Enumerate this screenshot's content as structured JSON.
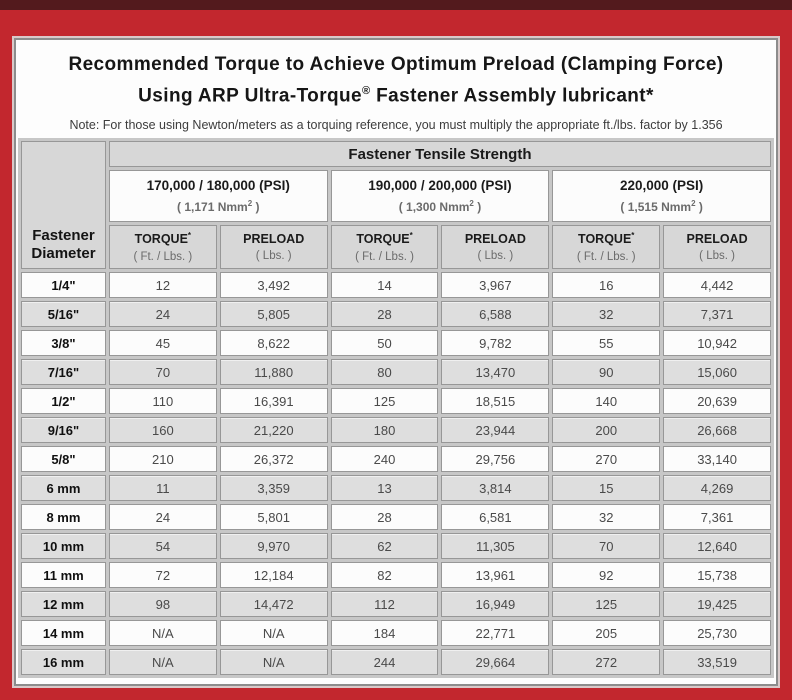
{
  "header": {
    "title_line1": "Recommended Torque to Achieve Optimum Preload (Clamping Force)",
    "title_line2_pre": "Using ARP Ultra-Torque",
    "title_line2_sup": "®",
    "title_line2_post": " Fastener Assembly lubricant*",
    "note": "Note: For those using Newton/meters as a torquing reference, you must multiply the appropriate ft./lbs. factor by 1.356"
  },
  "table": {
    "corner_line1": "Fastener",
    "corner_line2": "Diameter",
    "tensile_strength_header": "Fastener Tensile Strength",
    "groups": [
      {
        "psi": "170,000 / 180,000 (PSI)",
        "nmm_open": "( 1,171 Nmm",
        "nmm_sup": "2",
        "nmm_close": " )"
      },
      {
        "psi": "190,000 / 200,000 (PSI)",
        "nmm_open": "( 1,300 Nmm",
        "nmm_sup": "2",
        "nmm_close": " )"
      },
      {
        "psi": "220,000 (PSI)",
        "nmm_open": "( 1,515 Nmm",
        "nmm_sup": "2",
        "nmm_close": " )"
      }
    ],
    "torque_label": "TORQUE",
    "torque_sup": "*",
    "torque_unit": "( Ft. / Lbs. )",
    "preload_label": "PRELOAD",
    "preload_unit": "( Lbs. )"
  },
  "colors": {
    "frame_red": "#c2272e",
    "top_strip": "#531a1d",
    "header_gray": "#d7d7d7",
    "row_gray": "#dedede",
    "row_white": "#fcfcfc"
  },
  "chart_data": {
    "type": "table",
    "title": "Recommended Torque to Achieve Optimum Preload (Clamping Force) Using ARP Ultra-Torque® Fastener Assembly lubricant*",
    "note": "Note: For those using Newton/meters as a torquing reference, you must multiply the appropriate ft./lbs. factor by 1.356",
    "column_groups": [
      "170,000 / 180,000 (PSI) ( 1,171 Nmm2 )",
      "190,000 / 200,000 (PSI) ( 1,300 Nmm2 )",
      "220,000 (PSI) ( 1,515 Nmm2 )"
    ],
    "columns": [
      "Fastener Diameter",
      "TORQUE* ( Ft. / Lbs. )",
      "PRELOAD ( Lbs. )",
      "TORQUE* ( Ft. / Lbs. )",
      "PRELOAD ( Lbs. )",
      "TORQUE* ( Ft. / Lbs. )",
      "PRELOAD ( Lbs. )"
    ],
    "rows": [
      [
        "1/4\"",
        "12",
        "3,492",
        "14",
        "3,967",
        "16",
        "4,442"
      ],
      [
        "5/16\"",
        "24",
        "5,805",
        "28",
        "6,588",
        "32",
        "7,371"
      ],
      [
        "3/8\"",
        "45",
        "8,622",
        "50",
        "9,782",
        "55",
        "10,942"
      ],
      [
        "7/16\"",
        "70",
        "11,880",
        "80",
        "13,470",
        "90",
        "15,060"
      ],
      [
        "1/2\"",
        "110",
        "16,391",
        "125",
        "18,515",
        "140",
        "20,639"
      ],
      [
        "9/16\"",
        "160",
        "21,220",
        "180",
        "23,944",
        "200",
        "26,668"
      ],
      [
        "5/8\"",
        "210",
        "26,372",
        "240",
        "29,756",
        "270",
        "33,140"
      ],
      [
        "6 mm",
        "11",
        "3,359",
        "13",
        "3,814",
        "15",
        "4,269"
      ],
      [
        "8 mm",
        "24",
        "5,801",
        "28",
        "6,581",
        "32",
        "7,361"
      ],
      [
        "10 mm",
        "54",
        "9,970",
        "62",
        "11,305",
        "70",
        "12,640"
      ],
      [
        "11 mm",
        "72",
        "12,184",
        "82",
        "13,961",
        "92",
        "15,738"
      ],
      [
        "12 mm",
        "98",
        "14,472",
        "112",
        "16,949",
        "125",
        "19,425"
      ],
      [
        "14 mm",
        "N/A",
        "N/A",
        "184",
        "22,771",
        "205",
        "25,730"
      ],
      [
        "16 mm",
        "N/A",
        "N/A",
        "244",
        "29,664",
        "272",
        "33,519"
      ]
    ]
  }
}
